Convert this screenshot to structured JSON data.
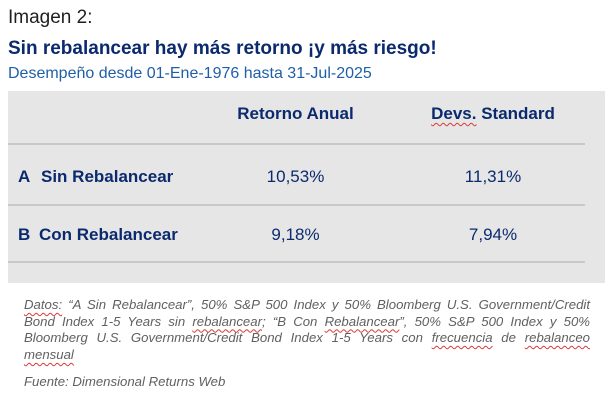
{
  "header": {
    "kicker": "Imagen 2:",
    "headline": "Sin rebalancear hay más retorno ¡y más riesgo!",
    "subhead": "Desempeño desde 01-Ene-1976 hasta 31-Jul-2025"
  },
  "table": {
    "columns": [
      "Retorno Anual",
      "Devs. Standard"
    ],
    "rows": [
      {
        "letter": "A",
        "label": "Sin Rebalancear",
        "values": [
          "10,53%",
          "11,31%"
        ]
      },
      {
        "letter": "B",
        "label": "Con Rebalancear",
        "values": [
          "9,18%",
          "7,94%"
        ]
      }
    ]
  },
  "footnote": {
    "datos_label": "Datos:",
    "text_1": " “A Sin Rebalancear”, 50% S&P 500 Index y 50% Bloomberg U.S. Government/Credit Bond Index 1-5 Years sin ",
    "rebalancear": "rebalancear",
    "text_2": "; “B Con ",
    "rebalancear_cap": "Rebalancear",
    "text_3": "”, 50% S&P 500 Index y 50% Bloomberg U.S. Government/Credit Bond Index 1-5 Years con ",
    "frecuencia": "frecuencia",
    "text_4": " de ",
    "rebalanceo_mensual": "rebalanceo mensual",
    "source": "Fuente: Dimensional Returns Web"
  },
  "colors": {
    "navy": "#0b2a6e",
    "subhead_blue": "#1f5fa8",
    "panel_gray": "#e6e6e6",
    "note_gray": "#606060"
  }
}
